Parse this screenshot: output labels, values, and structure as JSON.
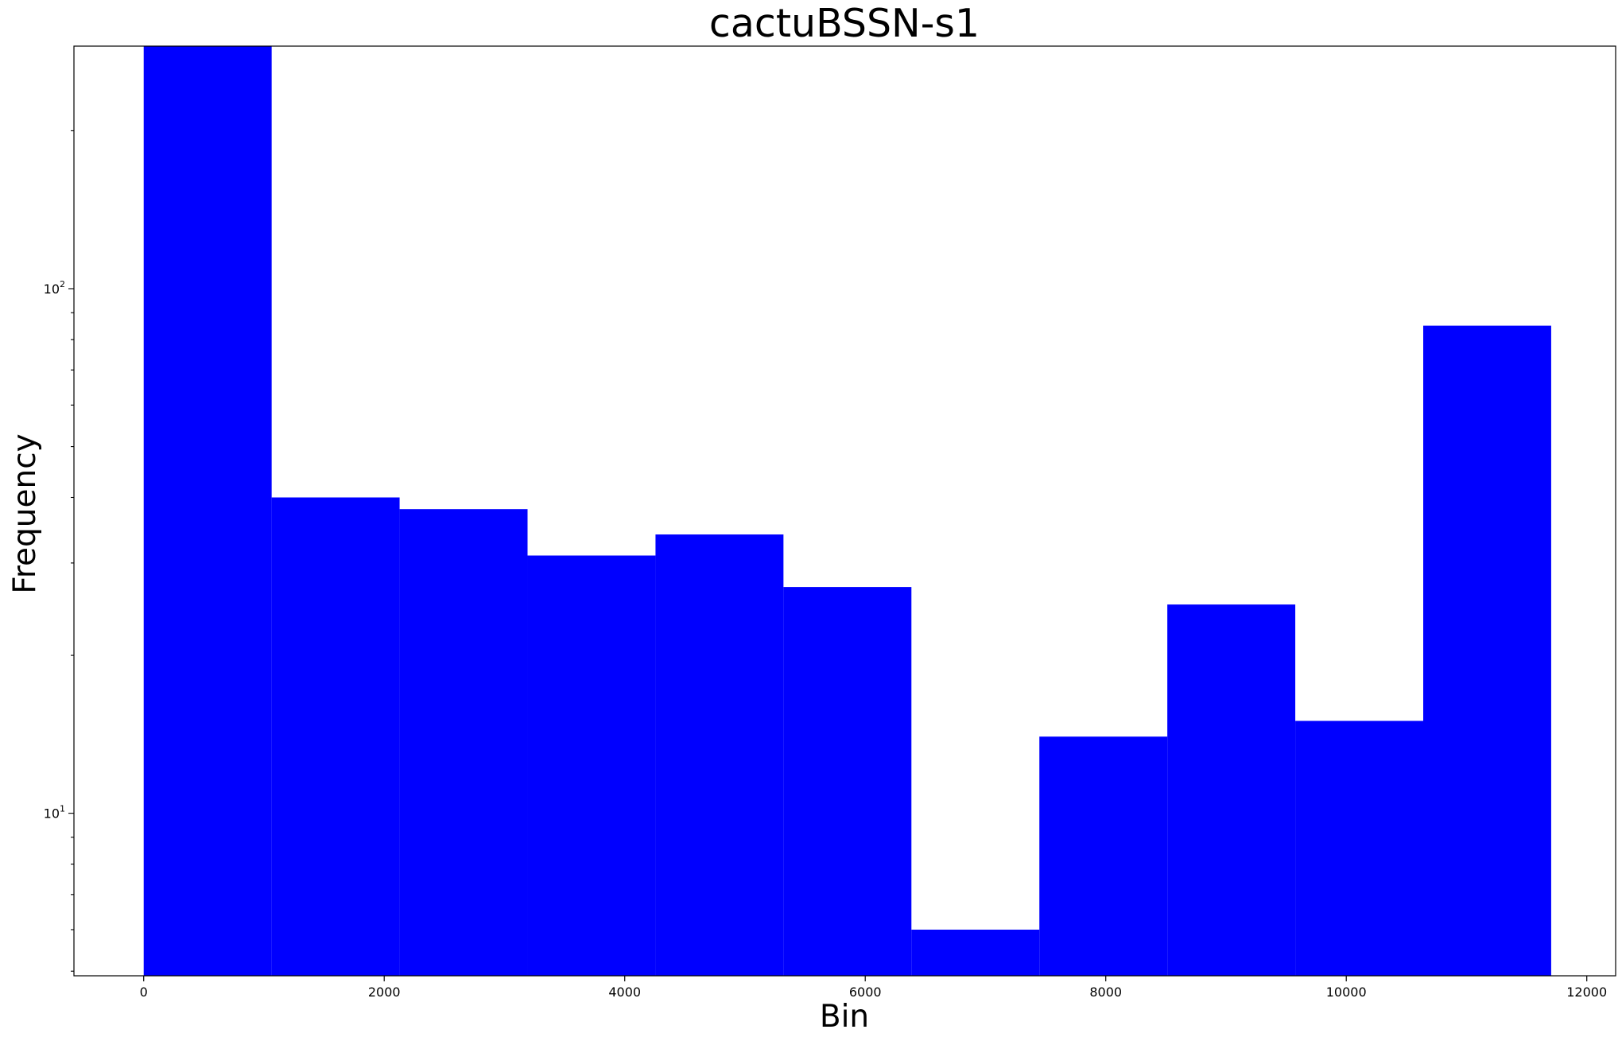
{
  "chart_data": {
    "type": "bar",
    "title": "cactuBSSN-s1",
    "xlabel": "Bin",
    "ylabel": "Frequency",
    "y_scale": "log",
    "xlim": [
      -580,
      12240
    ],
    "ylim": [
      4.9,
      290
    ],
    "bar_color": "#0000ff",
    "grid": false,
    "bins": [
      {
        "x0": 0,
        "x1": 1064,
        "value": 305
      },
      {
        "x0": 1064,
        "x1": 2128,
        "value": 40
      },
      {
        "x0": 2128,
        "x1": 3192,
        "value": 38
      },
      {
        "x0": 3192,
        "x1": 4256,
        "value": 31
      },
      {
        "x0": 4256,
        "x1": 5320,
        "value": 34
      },
      {
        "x0": 5320,
        "x1": 6384,
        "value": 27
      },
      {
        "x0": 6384,
        "x1": 7448,
        "value": 6
      },
      {
        "x0": 7448,
        "x1": 8512,
        "value": 14
      },
      {
        "x0": 8512,
        "x1": 9576,
        "value": 25
      },
      {
        "x0": 9576,
        "x1": 10640,
        "value": 15
      },
      {
        "x0": 10640,
        "x1": 11704,
        "value": 85
      }
    ],
    "x_ticks": [
      0,
      2000,
      4000,
      6000,
      8000,
      10000,
      12000
    ],
    "x_tick_labels": [
      "0",
      "2000",
      "4000",
      "6000",
      "8000",
      "10000",
      "12000"
    ],
    "y_major_ticks": [
      10,
      100
    ],
    "y_major_tick_labels": [
      {
        "base": "10",
        "exp": "1"
      },
      {
        "base": "10",
        "exp": "2"
      }
    ]
  }
}
